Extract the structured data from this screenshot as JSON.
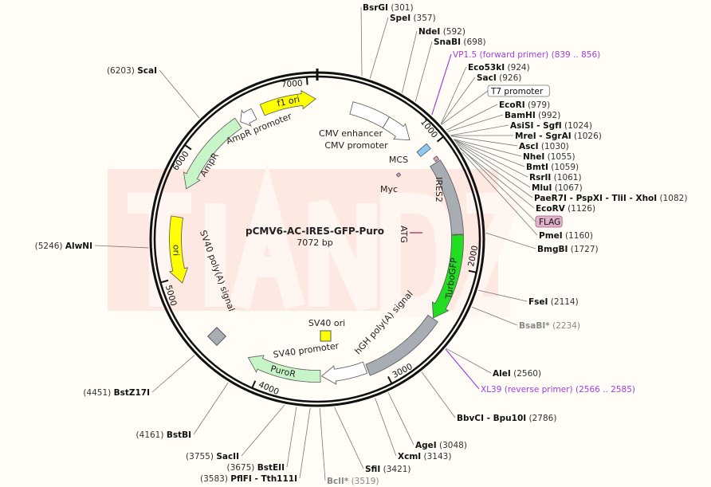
{
  "plasmid": {
    "name": "pCMV6-AC-IRES-GFP-Puro",
    "length_label": "7072 bp",
    "length": 7072
  },
  "watermark": "TIANDZ",
  "colors": {
    "background": "#fffdf6",
    "primer": "#a040e0",
    "amp": "#c8f5c8",
    "ori": "#ffff00",
    "gfp": "#22dd22",
    "gray_feature": "#a8adb4",
    "mcs": "#8ec8f5",
    "tag": "#d8a0c0"
  },
  "ticks": [
    "1000",
    "2000",
    "3000",
    "4000",
    "5000",
    "6000",
    "7000"
  ],
  "features": [
    {
      "name": "f1 ori",
      "start": 6620,
      "end": 7060,
      "dir": 1,
      "color": "#ffff00"
    },
    {
      "name": "AmpR promoter",
      "start": 6420,
      "end": 6545,
      "dir": -1,
      "color": "#ffffff"
    },
    {
      "name": "AmpR",
      "start": 5717,
      "end": 6400,
      "dir": -1,
      "color": "#c8f5c8"
    },
    {
      "name": "ori",
      "start": 4950,
      "end": 5481,
      "dir": -1,
      "color": "#ffff00"
    },
    {
      "name": "CMV enhancer",
      "start": 287,
      "end": 600,
      "dir": 0,
      "color": "#ffffff"
    },
    {
      "name": "CMV promoter",
      "start": 600,
      "end": 845,
      "dir": 1,
      "color": "#ffffff"
    },
    {
      "name": "MCS",
      "start": 960,
      "end": 1010,
      "dir": 0,
      "color": "#8ec8f5"
    },
    {
      "name": "FLAG",
      "start": 1085,
      "end": 1115,
      "dir": 0,
      "color": "#d8a0c0"
    },
    {
      "name": "IRES2",
      "start": 1125,
      "end": 1730,
      "dir": 0,
      "color": "#a8adb4"
    },
    {
      "name": "TurboGFP",
      "start": 1735,
      "end": 2440,
      "dir": 1,
      "color": "#22dd22"
    },
    {
      "name": "hGH poly(A) signal",
      "start": 2445,
      "end": 3120,
      "dir": 0,
      "color": "#a8adb4"
    },
    {
      "name": "SV40 promoter",
      "start": 3135,
      "end": 3500,
      "dir": 1,
      "color": "#ffffff"
    },
    {
      "name": "PuroR",
      "start": 3510,
      "end": 4130,
      "dir": 1,
      "color": "#c8f5c8"
    },
    {
      "name": "SV40 ori",
      "start": 3420,
      "end": 3470,
      "dir": 0,
      "color": "#ffff00"
    },
    {
      "name": "SV40 poly(A) signal",
      "start": 4380,
      "end": 4450,
      "dir": 0,
      "color": "#a8adb4"
    },
    {
      "name": "Myc",
      "start": 1000,
      "end": 1030,
      "dir": 0,
      "color": "#d8a0c0"
    },
    {
      "name": "ATG",
      "start": 1480,
      "end": 1500,
      "dir": 0,
      "color": "#d8a0c0"
    }
  ],
  "sites": [
    {
      "name": "BsrGI",
      "pos": "301"
    },
    {
      "name": "SpeI",
      "pos": "357"
    },
    {
      "name": "NdeI",
      "pos": "592"
    },
    {
      "name": "SnaBI",
      "pos": "698"
    },
    {
      "name": "VP1.5 (forward primer)",
      "pos": "839 .. 856",
      "primer": true
    },
    {
      "name": "Eco53kI",
      "pos": "924"
    },
    {
      "name": "SacI",
      "pos": "926"
    },
    {
      "name": "T7 promoter",
      "pos": "",
      "boxed": true
    },
    {
      "name": "EcoRI",
      "pos": "979"
    },
    {
      "name": "BamHI",
      "pos": "992"
    },
    {
      "name": "AsiSI - SgfI",
      "pos": "1024"
    },
    {
      "name": "MreI - SgrAI",
      "pos": "1026"
    },
    {
      "name": "AscI",
      "pos": "1030"
    },
    {
      "name": "NheI",
      "pos": "1055"
    },
    {
      "name": "BmtI",
      "pos": "1059"
    },
    {
      "name": "RsrII",
      "pos": "1061"
    },
    {
      "name": "MluI",
      "pos": "1067"
    },
    {
      "name": "PaeR7I - PspXI - TliI - XhoI",
      "pos": "1082"
    },
    {
      "name": "EcoRV",
      "pos": "1126"
    },
    {
      "name": "FLAG",
      "pos": "",
      "boxed": true,
      "pink": true
    },
    {
      "name": "PmeI",
      "pos": "1160"
    },
    {
      "name": "BmgBI",
      "pos": "1727"
    },
    {
      "name": "FseI",
      "pos": "2114"
    },
    {
      "name": "BsaBI*",
      "pos": "2234",
      "gray": true
    },
    {
      "name": "AleI",
      "pos": "2560"
    },
    {
      "name": "XL39 (reverse primer)",
      "pos": "2566 .. 2585",
      "primer": true
    },
    {
      "name": "BbvCI - Bpu10I",
      "pos": "2786"
    },
    {
      "name": "AgeI",
      "pos": "3048"
    },
    {
      "name": "XcmI",
      "pos": "3143"
    },
    {
      "name": "SfiI",
      "pos": "3421"
    },
    {
      "name": "BclI*",
      "pos": "3519",
      "gray": true
    },
    {
      "name": "PflFI - Tth111I",
      "pos": "3583"
    },
    {
      "name": "BstEII",
      "pos": "3675"
    },
    {
      "name": "SacII",
      "pos": "3755"
    },
    {
      "name": "BstBI",
      "pos": "4161"
    },
    {
      "name": "BstZ17I",
      "pos": "4451"
    },
    {
      "name": "AlwNI",
      "pos": "5246"
    },
    {
      "name": "ScaI",
      "pos": "6203"
    }
  ]
}
